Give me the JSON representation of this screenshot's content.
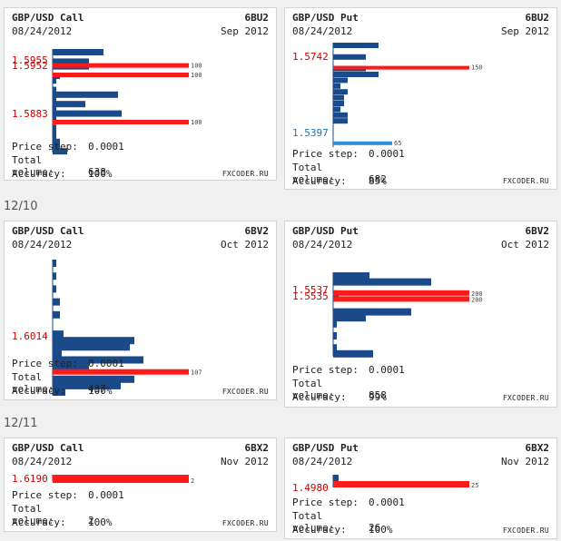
{
  "sections": [
    {
      "label": "12/10"
    },
    {
      "label": "12/11"
    }
  ],
  "cards": [
    {
      "title": "GBP/USD Call",
      "code": "6BU2",
      "date": "08/24/2012",
      "month": "Sep 2012",
      "price_step_label": "Price step:",
      "price_step": "0.0001",
      "volume_label": "Total volume:",
      "volume": "638",
      "accuracy_label": "Accuracy:",
      "accuracy": "100%",
      "brand": "FXCODER.RU",
      "chart_data": {
        "type": "bar",
        "orientation": "horizontal",
        "blue_bars": [
          56,
          40,
          40,
          8,
          4,
          4,
          72,
          4,
          36,
          4,
          76,
          4,
          4,
          4,
          4,
          8,
          8,
          16
        ],
        "highlights": [
          {
            "price": "1.5955",
            "value": 100
          },
          {
            "price": "1.5952",
            "value": 100
          },
          {
            "price": "1.5883",
            "value": 100
          }
        ]
      }
    },
    {
      "title": "GBP/USD Put",
      "code": "6BU2",
      "date": "08/24/2012",
      "month": "Sep 2012",
      "price_step_label": "Price step:",
      "price_step": "0.0001",
      "volume_label": "Total volume:",
      "volume": "682",
      "accuracy_label": "Accuracy:",
      "accuracy": "85%",
      "brand": "FXCODER.RU",
      "chart_data": {
        "type": "bar",
        "orientation": "horizontal",
        "blue_bars": [
          50,
          36,
          36,
          50,
          16,
          8,
          16,
          12,
          12,
          8,
          16,
          16
        ],
        "highlights": [
          {
            "price": "1.5742",
            "value": 150
          },
          {
            "price": "1.5397",
            "value": 65,
            "color": "cyan"
          }
        ]
      }
    },
    {
      "title": "GBP/USD Call",
      "code": "6BV2",
      "date": "08/24/2012",
      "month": "Oct 2012",
      "price_step_label": "Price step:",
      "price_step": "0.0001",
      "volume_label": "Total volume:",
      "volume": "437",
      "accuracy_label": "Accuracy:",
      "accuracy": "100%",
      "brand": "FXCODER.RU",
      "chart_data": {
        "type": "bar",
        "orientation": "horizontal",
        "blue_bars": [
          4,
          4,
          4,
          8,
          8,
          12,
          90,
          85,
          10,
          100,
          40,
          90,
          75,
          14
        ],
        "highlights": [
          {
            "price": "1.6014",
            "value": 107
          }
        ]
      }
    },
    {
      "title": "GBP/USD Put",
      "code": "6BV2",
      "date": "08/24/2012",
      "month": "Oct 2012",
      "price_step_label": "Price step:",
      "price_step": "0.0001",
      "volume_label": "Total volume:",
      "volume": "858",
      "accuracy_label": "Accuracy:",
      "accuracy": "99%",
      "brand": "FXCODER.RU",
      "chart_data": {
        "type": "bar",
        "orientation": "horizontal",
        "blue_bars": [
          40,
          108,
          6,
          86,
          36,
          4,
          4,
          4,
          44
        ],
        "highlights": [
          {
            "price": "1.5537",
            "value": 200
          },
          {
            "price": "1.5535",
            "value": 200
          }
        ]
      }
    },
    {
      "title": "GBP/USD Call",
      "code": "6BX2",
      "date": "08/24/2012",
      "month": "Nov 2012",
      "price_step_label": "Price step:",
      "price_step": "0.0001",
      "volume_label": "Total volume:",
      "volume": "2",
      "accuracy_label": "Accuracy:",
      "accuracy": "100%",
      "brand": "FXCODER.RU",
      "chart_data": {
        "type": "bar",
        "orientation": "horizontal",
        "blue_bars": [],
        "highlights": [
          {
            "price": "1.6190",
            "value": 2
          }
        ]
      }
    },
    {
      "title": "GBP/USD Put",
      "code": "6BX2",
      "date": "08/24/2012",
      "month": "Nov 2012",
      "price_step_label": "Price step:",
      "price_step": "0.0001",
      "volume_label": "Total volume:",
      "volume": "26",
      "accuracy_label": "Accuracy:",
      "accuracy": "100%",
      "brand": "FXCODER.RU",
      "chart_data": {
        "type": "bar",
        "orientation": "horizontal",
        "blue_bars": [
          6
        ],
        "highlights": [
          {
            "price": "1.4980",
            "value": 25
          }
        ]
      }
    }
  ],
  "colors": {
    "blue": "#1a4a8a",
    "red": "#ff1a1a",
    "cyan": "#2b8fd6",
    "price_red": "#cc0000",
    "price_cyan": "#1a6fb0"
  }
}
